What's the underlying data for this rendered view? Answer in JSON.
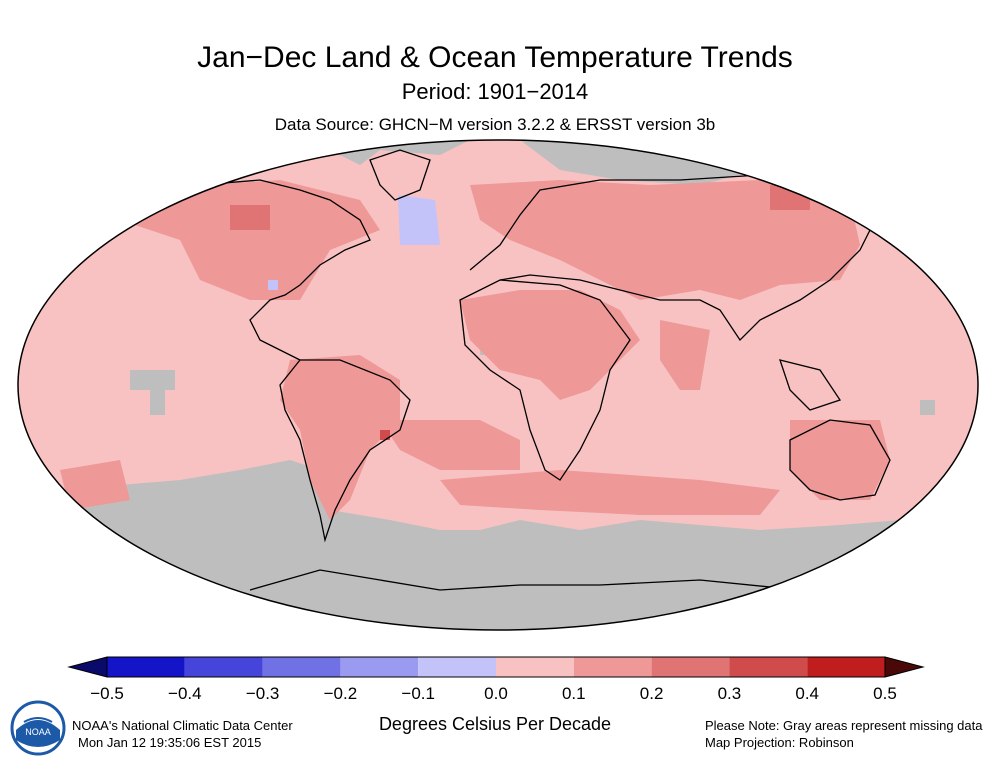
{
  "header": {
    "title": "Jan−Dec Land & Ocean Temperature Trends",
    "period": "Period: 1901−2014",
    "source": "Data Source: GHCN−M version 3.2.2 & ERSST version 3b"
  },
  "legend": {
    "units": "Degrees Celsius Per Decade",
    "ticks": [
      "−0.5",
      "−0.4",
      "−0.3",
      "−0.2",
      "−0.1",
      "0.0",
      "0.1",
      "0.2",
      "0.3",
      "0.4",
      "0.5"
    ],
    "bin_colors": [
      "#1414c8",
      "#4545dc",
      "#7171e6",
      "#9a9af0",
      "#c3c3f9",
      "#f8c2c2",
      "#ee9898",
      "#e07474",
      "#d04c4c",
      "#c01e1e"
    ],
    "low_extreme_color": "#0a0a6a",
    "high_extreme_color": "#4a0808"
  },
  "map": {
    "projection_label": "Map Projection: Robinson",
    "missing_color": "#bebebe",
    "base_trend_color": "#f8c2c2"
  },
  "footer": {
    "agency": "NOAA's National Climatic Data Center",
    "timestamp": "Mon Jan 12 19:35:06 EST 2015",
    "note": "Please Note: Gray areas represent missing data",
    "projection": "Map Projection: Robinson",
    "logo_text": "NOAA"
  }
}
